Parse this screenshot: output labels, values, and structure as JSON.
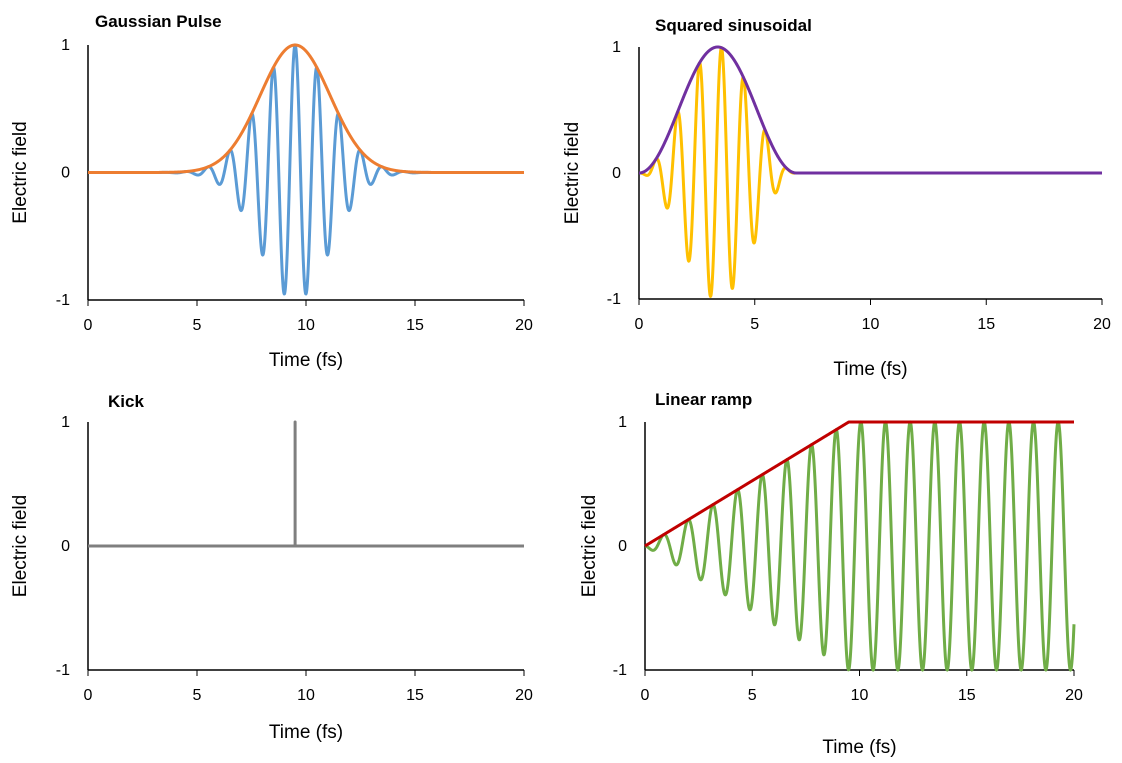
{
  "chart_data": [
    {
      "type": "line",
      "title": "Gaussian Pulse",
      "xlabel": "Time (fs)",
      "ylabel": "Electric field",
      "xlim": [
        0,
        20
      ],
      "ylim": [
        -1,
        1
      ],
      "xticks": [
        "0",
        "5",
        "10",
        "15",
        "20"
      ],
      "yticks": [
        "-1",
        "0",
        "1"
      ],
      "grid": false,
      "legend": "none",
      "signal": {
        "kind": "gaussian",
        "center": 9.5,
        "sigma": 1.6,
        "period": 1.0
      },
      "series": [
        {
          "role": "oscillation",
          "color": "#5B9BD5",
          "points": [
            [
              5,
              -0.02
            ],
            [
              5.5,
              0.03
            ],
            [
              6.0,
              -0.1
            ],
            [
              6.5,
              0.2
            ],
            [
              7.0,
              -0.35
            ],
            [
              7.5,
              0.52
            ],
            [
              8.0,
              -0.7
            ],
            [
              8.5,
              0.86
            ],
            [
              9.0,
              -0.96
            ],
            [
              9.5,
              1.0
            ],
            [
              10.0,
              -0.96
            ],
            [
              10.5,
              0.86
            ],
            [
              11.0,
              -0.7
            ],
            [
              11.5,
              0.52
            ],
            [
              12.0,
              -0.35
            ],
            [
              12.5,
              0.2
            ],
            [
              13.0,
              -0.1
            ],
            [
              13.5,
              0.03
            ],
            [
              14.0,
              -0.02
            ]
          ]
        },
        {
          "role": "envelope",
          "color": "#ED7D31",
          "points": [
            [
              0,
              0
            ],
            [
              4,
              0.0
            ],
            [
              5,
              0.02
            ],
            [
              6,
              0.09
            ],
            [
              7,
              0.3
            ],
            [
              8,
              0.64
            ],
            [
              9,
              0.95
            ],
            [
              9.5,
              1.0
            ],
            [
              10,
              0.95
            ],
            [
              11,
              0.64
            ],
            [
              12,
              0.3
            ],
            [
              13,
              0.09
            ],
            [
              14,
              0.02
            ],
            [
              15,
              0.0
            ],
            [
              20,
              0
            ]
          ]
        }
      ]
    },
    {
      "type": "line",
      "title": "Squared sinusoidal",
      "xlabel": "Time (fs)",
      "ylabel": "Electric field",
      "xlim": [
        0,
        20
      ],
      "ylim": [
        -1,
        1
      ],
      "xticks": [
        "0",
        "5",
        "10",
        "15",
        "20"
      ],
      "yticks": [
        "-1",
        "0",
        "1"
      ],
      "grid": false,
      "legend": "none",
      "signal": {
        "kind": "sin2",
        "start": 0,
        "end": 6.8,
        "period": 0.95
      },
      "series": [
        {
          "role": "oscillation",
          "color": "#FFC000",
          "points": [
            [
              0.5,
              -0.06
            ],
            [
              1.0,
              0.2
            ],
            [
              1.4,
              -0.38
            ],
            [
              1.9,
              0.58
            ],
            [
              2.4,
              -0.78
            ],
            [
              2.9,
              0.93
            ],
            [
              3.3,
              -1.0
            ],
            [
              3.8,
              0.97
            ],
            [
              4.3,
              -0.86
            ],
            [
              4.8,
              0.7
            ],
            [
              5.3,
              -0.5
            ],
            [
              5.7,
              0.3
            ],
            [
              6.2,
              -0.12
            ]
          ]
        },
        {
          "role": "envelope",
          "color": "#7030A0",
          "points": [
            [
              0,
              0
            ],
            [
              1,
              0.2
            ],
            [
              2,
              0.62
            ],
            [
              3,
              0.94
            ],
            [
              3.4,
              1.0
            ],
            [
              4,
              0.97
            ],
            [
              5,
              0.67
            ],
            [
              6,
              0.13
            ],
            [
              6.8,
              0
            ],
            [
              20,
              0
            ]
          ]
        }
      ]
    },
    {
      "type": "line",
      "title": "Kick",
      "xlabel": "Time (fs)",
      "ylabel": "Electric field",
      "xlim": [
        0,
        20
      ],
      "ylim": [
        -1,
        1
      ],
      "xticks": [
        "0",
        "5",
        "10",
        "15",
        "20"
      ],
      "yticks": [
        "-1",
        "0",
        "1"
      ],
      "grid": false,
      "legend": "none",
      "signal": {
        "kind": "kick",
        "at": 9.5
      },
      "series": [
        {
          "role": "signal",
          "color": "#7F7F7F",
          "points": [
            [
              0,
              0
            ],
            [
              9.48,
              0
            ],
            [
              9.5,
              1.0
            ],
            [
              9.52,
              0
            ],
            [
              20,
              0
            ]
          ]
        }
      ]
    },
    {
      "type": "line",
      "title": "Linear ramp",
      "xlabel": "Time (fs)",
      "ylabel": "Electric field",
      "xlim": [
        0,
        20
      ],
      "ylim": [
        -1,
        1
      ],
      "xticks": [
        "0",
        "5",
        "10",
        "15",
        "20"
      ],
      "yticks": [
        "-1",
        "0",
        "1"
      ],
      "grid": false,
      "legend": "none",
      "signal": {
        "kind": "ramp",
        "rampEnd": 9.5,
        "period": 1.15
      },
      "series": [
        {
          "role": "oscillation",
          "color": "#70AD47",
          "points": [
            [
              0.6,
              -0.05
            ],
            [
              1.2,
              0.12
            ],
            [
              1.7,
              -0.15
            ],
            [
              2.3,
              0.25
            ],
            [
              2.9,
              -0.3
            ],
            [
              3.5,
              0.37
            ],
            [
              4.0,
              -0.42
            ],
            [
              4.6,
              0.48
            ],
            [
              5.2,
              -0.55
            ],
            [
              5.8,
              0.6
            ],
            [
              6.3,
              -0.67
            ],
            [
              6.9,
              0.72
            ],
            [
              7.5,
              -0.79
            ],
            [
              8.1,
              0.85
            ],
            [
              8.6,
              -0.9
            ],
            [
              9.2,
              0.97
            ],
            [
              9.8,
              -1.0
            ],
            [
              10.4,
              1.0
            ],
            [
              20,
              -1.0
            ]
          ]
        },
        {
          "role": "envelope",
          "color": "#C00000",
          "points": [
            [
              0,
              0
            ],
            [
              9.5,
              1.0
            ],
            [
              20,
              1.0
            ]
          ]
        }
      ]
    }
  ]
}
